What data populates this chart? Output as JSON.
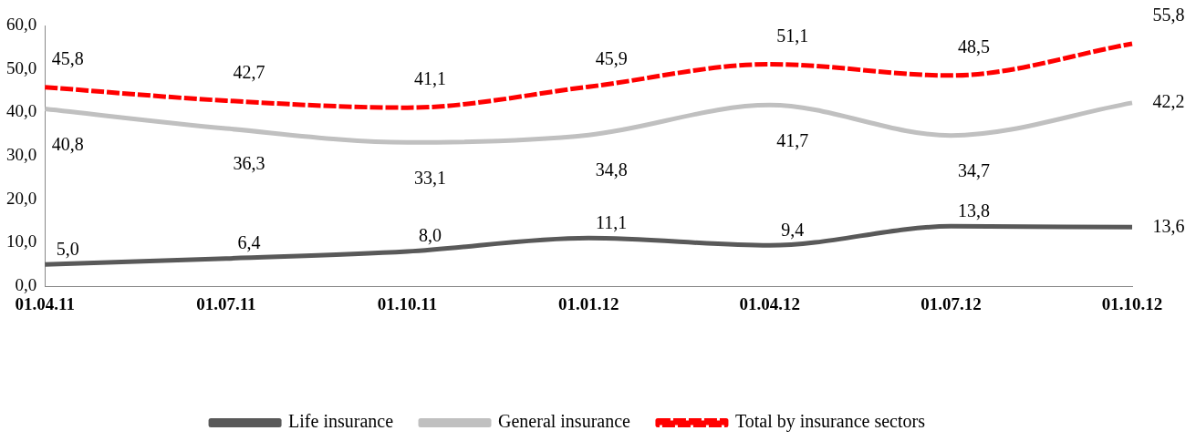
{
  "chart_data": {
    "type": "line",
    "categories": [
      "01.04.11",
      "01.07.11",
      "01.10.11",
      "01.01.12",
      "01.04.12",
      "01.07.12",
      "01.10.12"
    ],
    "series": [
      {
        "name": "Life insurance",
        "color": "#595959",
        "values": [
          5.0,
          6.4,
          8.0,
          11.1,
          9.4,
          13.8,
          13.6
        ],
        "value_labels": [
          "5,0",
          "6,4",
          "8,0",
          "11,1",
          "9,4",
          "13,8",
          "13,6"
        ]
      },
      {
        "name": "General insurance",
        "color": "#c0c0c0",
        "values": [
          40.8,
          36.3,
          33.1,
          34.8,
          41.7,
          34.7,
          42.2
        ],
        "value_labels": [
          "40,8",
          "36,3",
          "33,1",
          "34,8",
          "41,7",
          "34,7",
          "42,2"
        ]
      },
      {
        "name": "Total by insurance sectors",
        "color": "#ff0000",
        "line_style": "dashed",
        "values": [
          45.8,
          42.7,
          41.1,
          45.9,
          51.1,
          48.5,
          55.8
        ],
        "value_labels": [
          "45,8",
          "42,7",
          "41,1",
          "45,9",
          "51,1",
          "48,5",
          "55,8"
        ]
      }
    ],
    "ylim": [
      0,
      60
    ],
    "yticks": [
      {
        "value": 0,
        "label": "0,0"
      },
      {
        "value": 10,
        "label": "10,0"
      },
      {
        "value": 20,
        "label": "20,0"
      },
      {
        "value": 30,
        "label": "30,0"
      },
      {
        "value": 40,
        "label": "40,0"
      },
      {
        "value": 50,
        "label": "50,0"
      },
      {
        "value": 60,
        "label": "60,0"
      }
    ],
    "grid": false,
    "legend": "bottom",
    "marker": "none",
    "line_style": "solid"
  }
}
